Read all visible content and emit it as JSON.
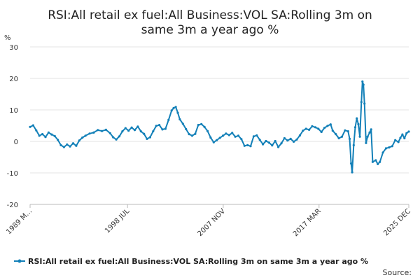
{
  "chart_data": {
    "type": "line",
    "title_lines": [
      "RSI:All retail ex fuel:All Business:VOL SA:Rolling 3m on",
      "same 3m a year ago %"
    ],
    "y_unit": "%",
    "ylim": [
      -20,
      30
    ],
    "y_ticks": [
      30,
      20,
      10,
      0,
      -10,
      -20
    ],
    "x_range": [
      1989.0,
      2025.92
    ],
    "x_ticks": [
      {
        "label": "1989 M...",
        "x": 1989.0
      },
      {
        "label": "1998 JUL",
        "x": 1998.5
      },
      {
        "label": "2007 NOV",
        "x": 2007.83
      },
      {
        "label": "2017 MAR",
        "x": 2017.17
      },
      {
        "label": "2025 DEC",
        "x": 2025.92
      }
    ],
    "grid": true,
    "legend_position": "bottom",
    "series": [
      {
        "name": "RSI:All retail ex fuel:All Business:VOL SA:Rolling 3m on same 3m a year ago %",
        "color": "#1380b8",
        "points": [
          [
            1989.0,
            4.6
          ],
          [
            1989.3,
            5.1
          ],
          [
            1989.6,
            3.5
          ],
          [
            1989.9,
            1.8
          ],
          [
            1990.2,
            2.3
          ],
          [
            1990.5,
            1.4
          ],
          [
            1990.8,
            2.8
          ],
          [
            1991.1,
            2.2
          ],
          [
            1991.4,
            1.7
          ],
          [
            1991.7,
            0.5
          ],
          [
            1992.0,
            -1.2
          ],
          [
            1992.3,
            -1.8
          ],
          [
            1992.6,
            -1.0
          ],
          [
            1992.9,
            -1.6
          ],
          [
            1993.2,
            -0.6
          ],
          [
            1993.5,
            -1.4
          ],
          [
            1993.8,
            0.3
          ],
          [
            1994.1,
            1.2
          ],
          [
            1994.4,
            1.8
          ],
          [
            1994.8,
            2.5
          ],
          [
            1995.2,
            2.8
          ],
          [
            1995.6,
            3.6
          ],
          [
            1996.0,
            3.3
          ],
          [
            1996.4,
            3.7
          ],
          [
            1996.8,
            2.6
          ],
          [
            1997.1,
            1.3
          ],
          [
            1997.4,
            0.6
          ],
          [
            1997.7,
            1.6
          ],
          [
            1998.0,
            3.2
          ],
          [
            1998.3,
            4.2
          ],
          [
            1998.6,
            3.4
          ],
          [
            1998.9,
            4.4
          ],
          [
            1999.2,
            3.6
          ],
          [
            1999.5,
            4.7
          ],
          [
            1999.8,
            3.2
          ],
          [
            2000.1,
            2.4
          ],
          [
            2000.4,
            0.8
          ],
          [
            2000.7,
            1.3
          ],
          [
            2001.0,
            3.2
          ],
          [
            2001.3,
            4.9
          ],
          [
            2001.6,
            5.2
          ],
          [
            2001.9,
            3.8
          ],
          [
            2002.2,
            4.0
          ],
          [
            2002.5,
            6.8
          ],
          [
            2002.8,
            9.8
          ],
          [
            2003.0,
            10.6
          ],
          [
            2003.2,
            10.9
          ],
          [
            2003.4,
            9.1
          ],
          [
            2003.6,
            7.0
          ],
          [
            2003.9,
            5.6
          ],
          [
            2004.2,
            3.9
          ],
          [
            2004.5,
            2.3
          ],
          [
            2004.8,
            1.8
          ],
          [
            2005.1,
            2.4
          ],
          [
            2005.4,
            5.2
          ],
          [
            2005.7,
            5.5
          ],
          [
            2006.0,
            4.6
          ],
          [
            2006.3,
            3.3
          ],
          [
            2006.6,
            1.2
          ],
          [
            2006.9,
            -0.3
          ],
          [
            2007.2,
            0.4
          ],
          [
            2007.5,
            1.1
          ],
          [
            2007.8,
            1.8
          ],
          [
            2008.1,
            2.5
          ],
          [
            2008.4,
            2.0
          ],
          [
            2008.7,
            2.7
          ],
          [
            2009.0,
            1.5
          ],
          [
            2009.3,
            1.8
          ],
          [
            2009.6,
            0.7
          ],
          [
            2009.9,
            -1.4
          ],
          [
            2010.2,
            -1.2
          ],
          [
            2010.5,
            -1.5
          ],
          [
            2010.8,
            1.6
          ],
          [
            2011.1,
            1.9
          ],
          [
            2011.4,
            0.5
          ],
          [
            2011.7,
            -0.9
          ],
          [
            2012.0,
            0.1
          ],
          [
            2012.3,
            -0.4
          ],
          [
            2012.6,
            -1.3
          ],
          [
            2012.9,
            0.1
          ],
          [
            2013.2,
            -1.8
          ],
          [
            2013.5,
            -0.6
          ],
          [
            2013.8,
            1.0
          ],
          [
            2014.1,
            0.3
          ],
          [
            2014.4,
            0.8
          ],
          [
            2014.7,
            -0.1
          ],
          [
            2015.0,
            0.6
          ],
          [
            2015.3,
            1.9
          ],
          [
            2015.6,
            3.4
          ],
          [
            2015.9,
            4.0
          ],
          [
            2016.2,
            3.7
          ],
          [
            2016.5,
            4.8
          ],
          [
            2016.8,
            4.5
          ],
          [
            2017.1,
            4.0
          ],
          [
            2017.4,
            3.0
          ],
          [
            2017.7,
            4.3
          ],
          [
            2018.0,
            4.9
          ],
          [
            2018.3,
            5.4
          ],
          [
            2018.5,
            3.4
          ],
          [
            2018.8,
            2.3
          ],
          [
            2019.1,
            1.0
          ],
          [
            2019.4,
            1.5
          ],
          [
            2019.7,
            3.5
          ],
          [
            2020.0,
            3.2
          ],
          [
            2020.15,
            0.8
          ],
          [
            2020.3,
            -7.0
          ],
          [
            2020.4,
            -9.8
          ],
          [
            2020.55,
            -1.2
          ],
          [
            2020.7,
            4.5
          ],
          [
            2020.85,
            7.3
          ],
          [
            2021.0,
            5.5
          ],
          [
            2021.15,
            1.5
          ],
          [
            2021.3,
            12.5
          ],
          [
            2021.4,
            19.0
          ],
          [
            2021.5,
            18.0
          ],
          [
            2021.6,
            12.0
          ],
          [
            2021.75,
            -0.5
          ],
          [
            2021.9,
            1.5
          ],
          [
            2022.1,
            2.8
          ],
          [
            2022.25,
            3.8
          ],
          [
            2022.4,
            -6.5
          ],
          [
            2022.7,
            -6.0
          ],
          [
            2022.9,
            -7.2
          ],
          [
            2023.1,
            -6.5
          ],
          [
            2023.4,
            -3.5
          ],
          [
            2023.7,
            -2.2
          ],
          [
            2024.0,
            -1.9
          ],
          [
            2024.3,
            -1.5
          ],
          [
            2024.6,
            0.4
          ],
          [
            2024.9,
            -0.2
          ],
          [
            2025.1,
            1.1
          ],
          [
            2025.3,
            2.2
          ],
          [
            2025.5,
            1.0
          ],
          [
            2025.7,
            2.6
          ],
          [
            2025.92,
            3.1
          ]
        ]
      }
    ],
    "source_label": "Source:"
  }
}
